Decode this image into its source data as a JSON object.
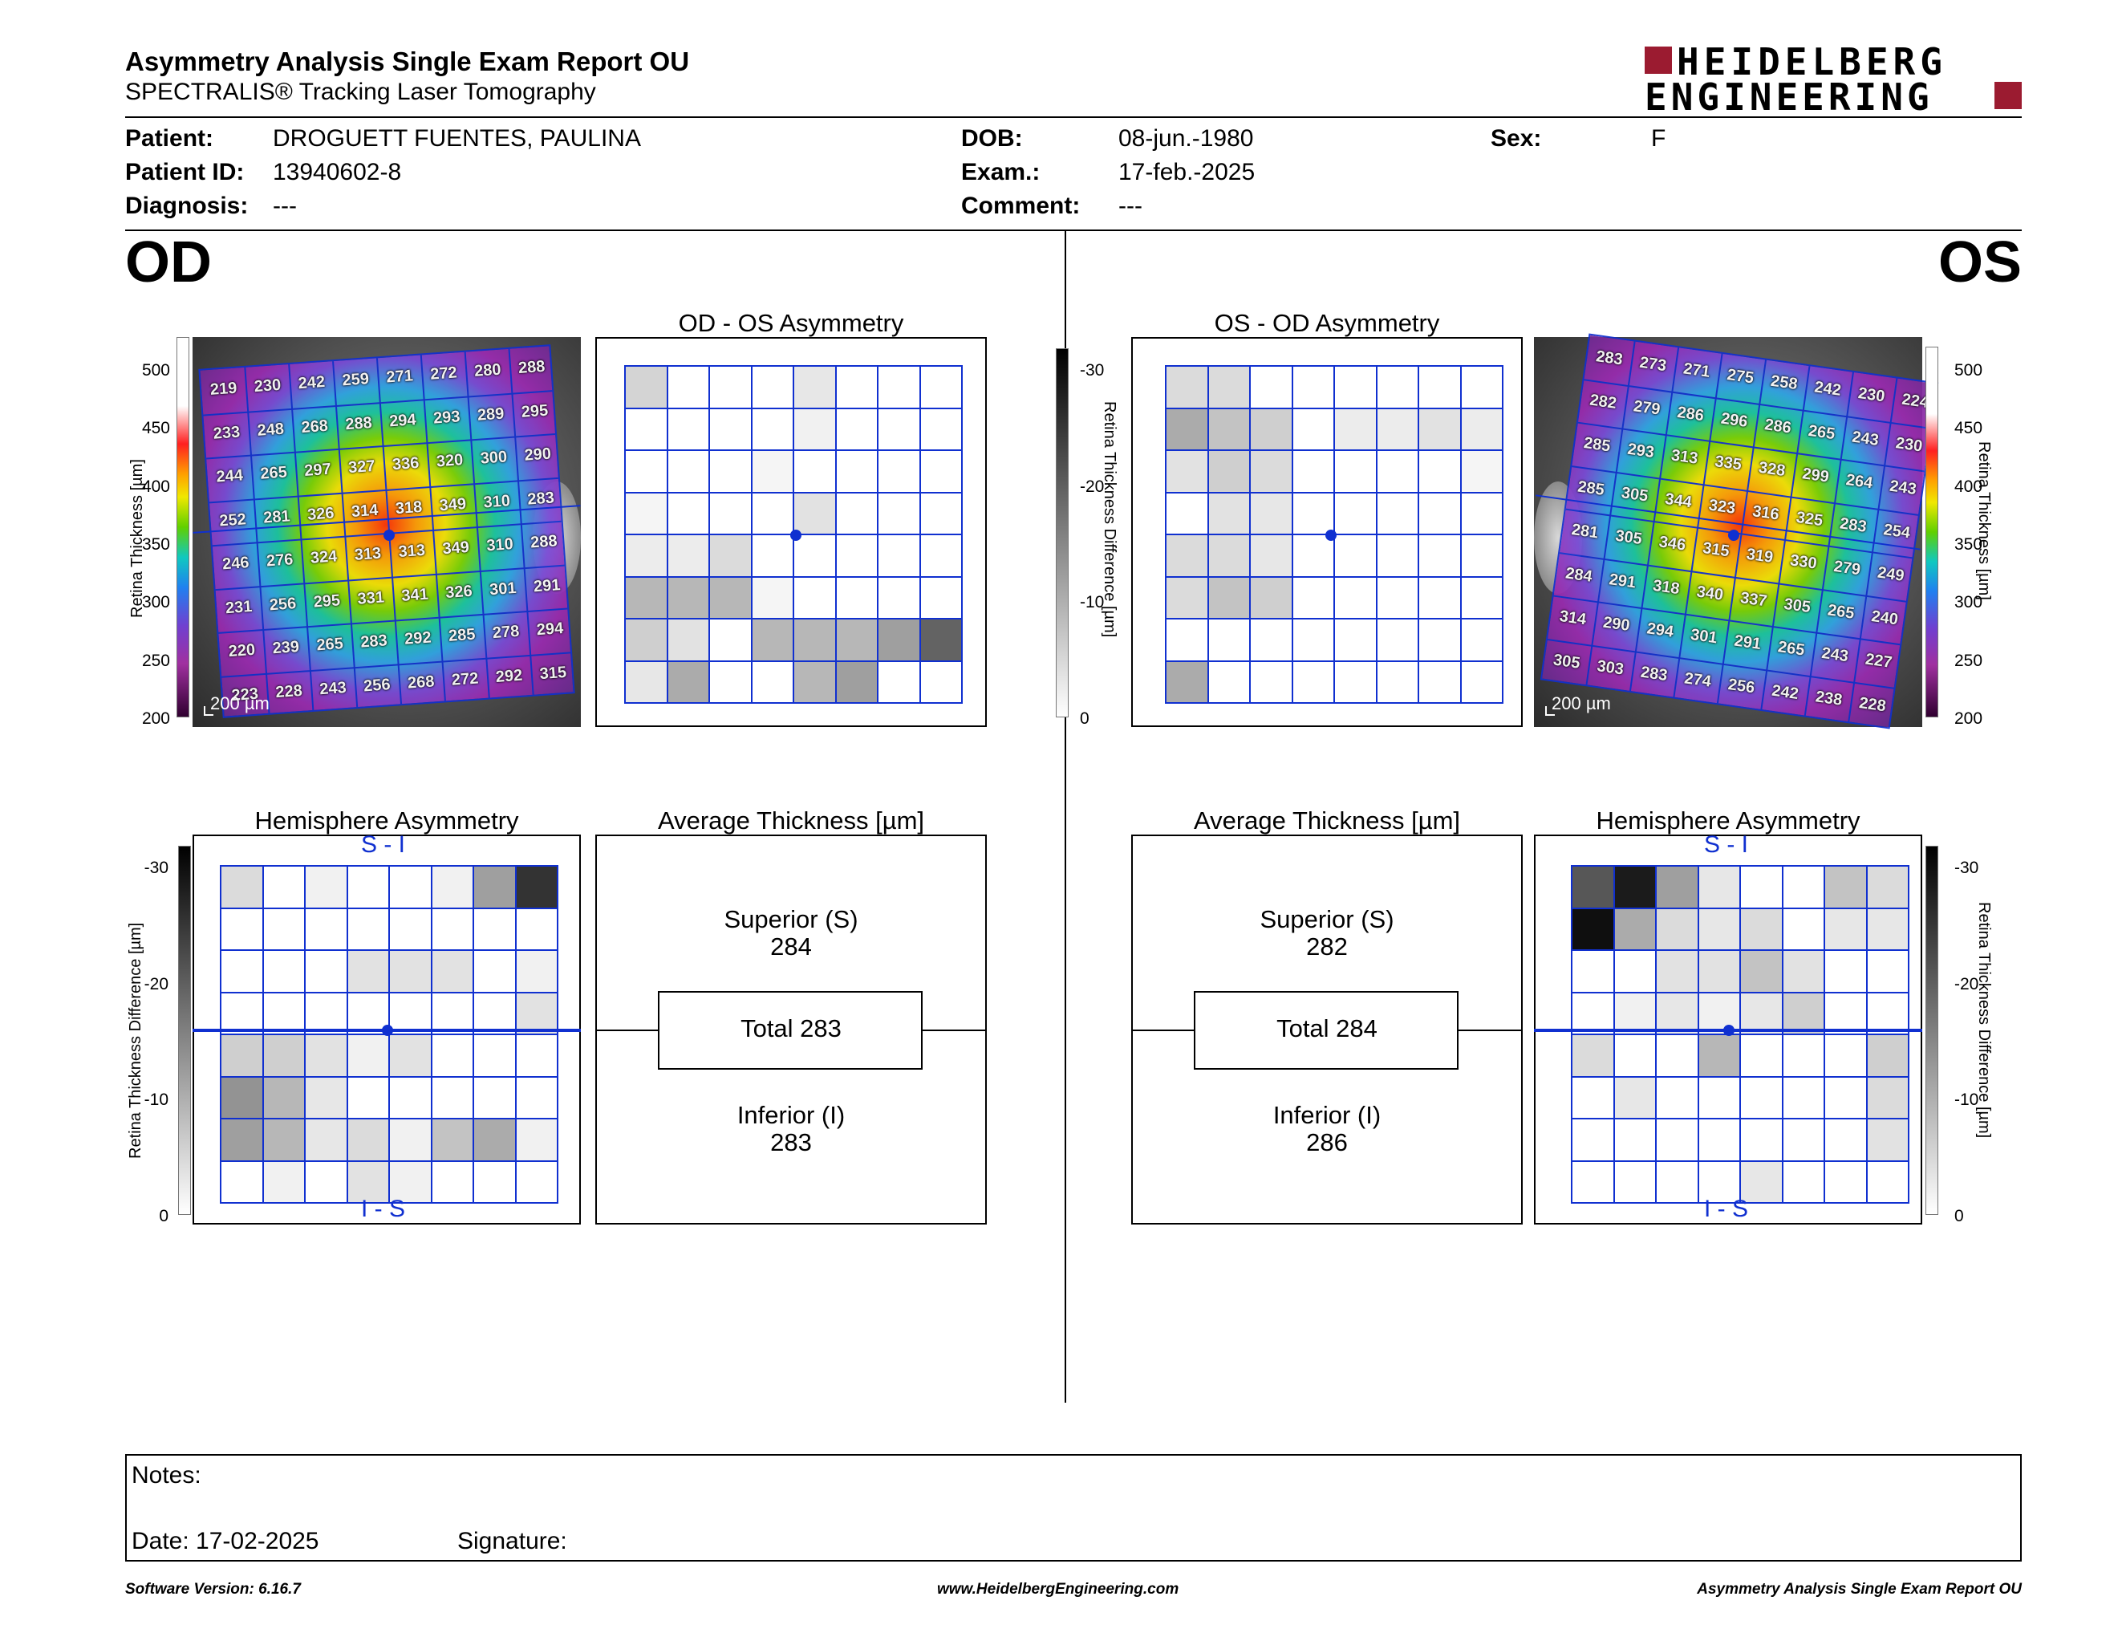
{
  "header": {
    "title": "Asymmetry Analysis Single Exam Report OU",
    "subtitle": "SPECTRALIS® Tracking Laser Tomography",
    "logo_line1": "HEIDELBERG",
    "logo_line2": "ENGINEERING"
  },
  "patient": {
    "patient_label": "Patient:",
    "patient_value": "DROGUETT FUENTES, PAULINA",
    "id_label": "Patient ID:",
    "id_value": "13940602-8",
    "diag_label": "Diagnosis:",
    "diag_value": "---",
    "dob_label": "DOB:",
    "dob_value": "08-jun.-1980",
    "exam_label": "Exam.:",
    "exam_value": "17-feb.-2025",
    "comment_label": "Comment:",
    "comment_value": "---",
    "sex_label": "Sex:",
    "sex_value": "F"
  },
  "od": {
    "eye_label": "OD",
    "asym_title": "OD - OS Asymmetry",
    "hemi_title": "Hemisphere Asymmetry",
    "avg_title": "Average Thickness [µm]",
    "scale_bar": "200 µm",
    "thickness_grid": [
      [
        219,
        230,
        242,
        259,
        271,
        272,
        280,
        288
      ],
      [
        233,
        248,
        268,
        288,
        294,
        293,
        289,
        295
      ],
      [
        244,
        265,
        297,
        327,
        336,
        320,
        300,
        290
      ],
      [
        252,
        281,
        326,
        314,
        318,
        349,
        310,
        283
      ],
      [
        246,
        276,
        324,
        313,
        313,
        349,
        310,
        288
      ],
      [
        231,
        256,
        295,
        331,
        341,
        326,
        301,
        291
      ],
      [
        220,
        239,
        265,
        283,
        292,
        285,
        278,
        294
      ],
      [
        223,
        228,
        243,
        256,
        268,
        272,
        292,
        315
      ]
    ],
    "asym_grid": [
      [
        0.18,
        0,
        0,
        0,
        0.1,
        0,
        0,
        0
      ],
      [
        0,
        0,
        0,
        0,
        0.06,
        0,
        0,
        0
      ],
      [
        0,
        0,
        0,
        0.04,
        0,
        0,
        0,
        0
      ],
      [
        0.04,
        0,
        0,
        0,
        0.12,
        0,
        0,
        0
      ],
      [
        0.08,
        0.08,
        0.15,
        0,
        0,
        0,
        0,
        0
      ],
      [
        0.3,
        0.3,
        0.3,
        0.04,
        0,
        0,
        0,
        0
      ],
      [
        0.2,
        0.12,
        0,
        0.3,
        0.3,
        0.3,
        0.4,
        0.65
      ],
      [
        0.1,
        0.35,
        0,
        0,
        0.3,
        0.4,
        0,
        0
      ]
    ],
    "hemi_grid": [
      [
        0.15,
        0,
        0.06,
        0,
        0,
        0.06,
        0.4,
        0.85
      ],
      [
        0,
        0,
        0,
        0,
        0,
        0,
        0,
        0
      ],
      [
        0,
        0,
        0,
        0.12,
        0.12,
        0.12,
        0,
        0.06
      ],
      [
        0,
        0,
        0,
        0,
        0,
        0,
        0,
        0.12
      ],
      [
        0.2,
        0.2,
        0.12,
        0.06,
        0.12,
        0,
        0,
        0
      ],
      [
        0.45,
        0.3,
        0.1,
        0,
        0,
        0,
        0,
        0
      ],
      [
        0.4,
        0.3,
        0.1,
        0.15,
        0.06,
        0.25,
        0.35,
        0.06
      ],
      [
        0,
        0.06,
        0,
        0.12,
        0.06,
        0,
        0,
        0
      ]
    ],
    "hemi_top": "S - I",
    "hemi_bottom": "I - S",
    "superior_label": "Superior (S)",
    "superior_value": "284",
    "total": "Total 283",
    "inferior_label": "Inferior (I)",
    "inferior_value": "283"
  },
  "os": {
    "eye_label": "OS",
    "asym_title": "OS - OD Asymmetry",
    "hemi_title": "Hemisphere Asymmetry",
    "avg_title": "Average Thickness [µm]",
    "scale_bar": "200 µm",
    "thickness_grid": [
      [
        283,
        273,
        271,
        275,
        258,
        242,
        230,
        224
      ],
      [
        282,
        279,
        286,
        296,
        286,
        265,
        243,
        230
      ],
      [
        285,
        293,
        313,
        335,
        328,
        299,
        264,
        243
      ],
      [
        285,
        305,
        344,
        323,
        316,
        325,
        283,
        254
      ],
      [
        281,
        305,
        346,
        315,
        319,
        330,
        279,
        249
      ],
      [
        284,
        291,
        318,
        340,
        337,
        305,
        265,
        240
      ],
      [
        314,
        290,
        294,
        301,
        291,
        265,
        243,
        227
      ],
      [
        305,
        303,
        283,
        274,
        256,
        242,
        238,
        228
      ]
    ],
    "asym_grid": [
      [
        0.15,
        0.15,
        0,
        0,
        0,
        0,
        0,
        0
      ],
      [
        0.35,
        0.25,
        0.2,
        0,
        0.08,
        0.08,
        0.12,
        0.08
      ],
      [
        0.12,
        0.2,
        0.15,
        0,
        0,
        0,
        0,
        0.04
      ],
      [
        0,
        0.12,
        0.1,
        0,
        0,
        0,
        0,
        0
      ],
      [
        0.15,
        0.15,
        0.1,
        0,
        0,
        0,
        0,
        0
      ],
      [
        0.15,
        0.25,
        0.2,
        0,
        0,
        0,
        0,
        0
      ],
      [
        0,
        0,
        0,
        0,
        0,
        0,
        0,
        0
      ],
      [
        0.35,
        0,
        0,
        0,
        0,
        0,
        0,
        0
      ]
    ],
    "hemi_grid": [
      [
        0.7,
        0.95,
        0.4,
        0.1,
        0,
        0,
        0.25,
        0.15
      ],
      [
        1.0,
        0.35,
        0.15,
        0.1,
        0.15,
        0,
        0.1,
        0.1
      ],
      [
        0,
        0,
        0.12,
        0.12,
        0.25,
        0.12,
        0,
        0
      ],
      [
        0,
        0.06,
        0.1,
        0.06,
        0.1,
        0.2,
        0,
        0
      ],
      [
        0.15,
        0,
        0,
        0.3,
        0,
        0,
        0,
        0.2
      ],
      [
        0,
        0.1,
        0,
        0,
        0,
        0,
        0,
        0.15
      ],
      [
        0,
        0,
        0,
        0,
        0,
        0,
        0,
        0.12
      ],
      [
        0,
        0,
        0,
        0,
        0.1,
        0,
        0,
        0
      ]
    ],
    "hemi_top": "S - I",
    "hemi_bottom": "I - S",
    "superior_label": "Superior (S)",
    "superior_value": "282",
    "total": "Total 284",
    "inferior_label": "Inferior (I)",
    "inferior_value": "286"
  },
  "axes": {
    "thickness_label": "Retina Thickness [µm]",
    "thickness_ticks": [
      "500",
      "450",
      "400",
      "350",
      "300",
      "250",
      "200"
    ],
    "diff_label": "Retina Thickness Difference [µm]",
    "diff_ticks": [
      "-30",
      "-20",
      "-10",
      "0"
    ]
  },
  "notes": {
    "notes_label": "Notes:",
    "date_label": "Date: 17-02-2025",
    "signature_label": "Signature:"
  },
  "footer": {
    "software": "Software Version: 6.16.7",
    "website": "www.HeidelbergEngineering.com",
    "report": "Asymmetry Analysis Single Exam Report OU"
  },
  "colors": {
    "grid_blue": "#1030d0",
    "logo_red": "#9b1b30"
  }
}
